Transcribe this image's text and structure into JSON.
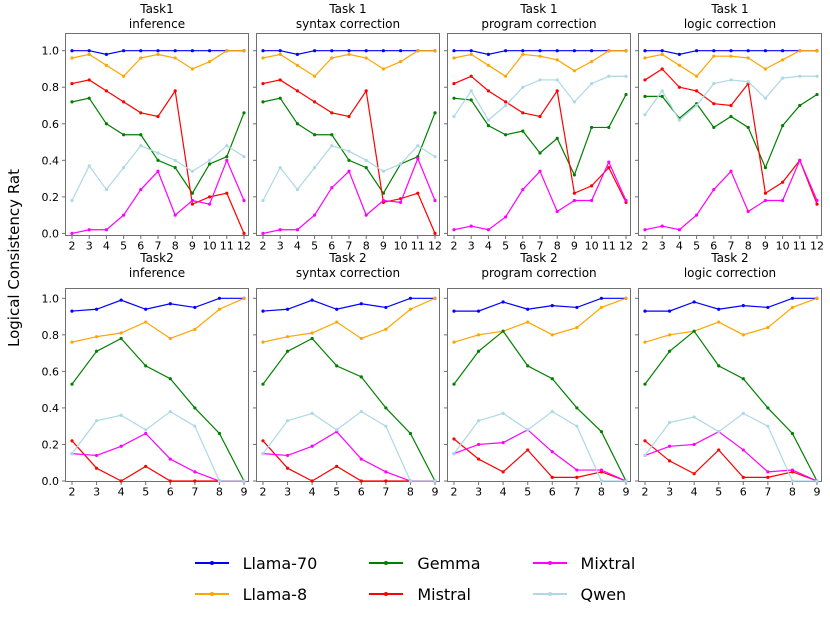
{
  "chart_data": {
    "type": "line",
    "ylabel": "Logical Consistency Rat",
    "grid": false,
    "ylim": [
      0.0,
      1.05
    ],
    "yticks": [
      0.0,
      0.2,
      0.4,
      0.6,
      0.8,
      1.0
    ],
    "legend_position": "bottom",
    "legend": [
      {
        "name": "Llama-70",
        "color": "#0000ff"
      },
      {
        "name": "Llama-8",
        "color": "#ffa500"
      },
      {
        "name": "Gemma",
        "color": "#008000"
      },
      {
        "name": "Mistral",
        "color": "#ff0000"
      },
      {
        "name": "Mixtral",
        "color": "#ff00ff"
      },
      {
        "name": "Qwen",
        "color": "#add8e6"
      }
    ],
    "subplots": [
      {
        "title1": "Task1",
        "title2": "inference",
        "x": [
          2,
          3,
          4,
          5,
          6,
          7,
          8,
          9,
          10,
          11,
          12
        ],
        "series": [
          {
            "name": "Llama-70",
            "values": [
              1.0,
              1.0,
              0.98,
              1.0,
              1.0,
              1.0,
              1.0,
              1.0,
              1.0,
              1.0,
              1.0
            ]
          },
          {
            "name": "Llama-8",
            "values": [
              0.96,
              0.98,
              0.92,
              0.86,
              0.96,
              0.98,
              0.96,
              0.9,
              0.94,
              1.0,
              1.0
            ]
          },
          {
            "name": "Gemma",
            "values": [
              0.72,
              0.74,
              0.6,
              0.54,
              0.54,
              0.4,
              0.36,
              0.22,
              0.38,
              0.42,
              0.66
            ]
          },
          {
            "name": "Mistral",
            "values": [
              0.82,
              0.84,
              0.78,
              0.72,
              0.66,
              0.64,
              0.78,
              0.16,
              0.2,
              0.22,
              0.0
            ]
          },
          {
            "name": "Mixtral",
            "values": [
              0.0,
              0.02,
              0.02,
              0.1,
              0.24,
              0.34,
              0.1,
              0.18,
              0.16,
              0.4,
              0.18
            ]
          },
          {
            "name": "Qwen",
            "values": [
              0.18,
              0.37,
              0.24,
              0.36,
              0.48,
              0.44,
              0.4,
              0.34,
              0.4,
              0.48,
              0.42
            ]
          }
        ]
      },
      {
        "title1": "Task 1",
        "title2": "syntax correction",
        "x": [
          2,
          3,
          4,
          5,
          6,
          7,
          8,
          9,
          10,
          11,
          12
        ],
        "series": [
          {
            "name": "Llama-70",
            "values": [
              1.0,
              1.0,
              0.98,
              1.0,
              1.0,
              1.0,
              1.0,
              1.0,
              1.0,
              1.0,
              1.0
            ]
          },
          {
            "name": "Llama-8",
            "values": [
              0.96,
              0.98,
              0.92,
              0.86,
              0.96,
              0.98,
              0.96,
              0.9,
              0.94,
              1.0,
              1.0
            ]
          },
          {
            "name": "Gemma",
            "values": [
              0.72,
              0.74,
              0.6,
              0.54,
              0.54,
              0.4,
              0.36,
              0.22,
              0.38,
              0.42,
              0.66
            ]
          },
          {
            "name": "Mistral",
            "values": [
              0.82,
              0.84,
              0.78,
              0.72,
              0.66,
              0.64,
              0.78,
              0.17,
              0.19,
              0.22,
              0.0
            ]
          },
          {
            "name": "Mixtral",
            "values": [
              0.0,
              0.02,
              0.02,
              0.1,
              0.25,
              0.34,
              0.1,
              0.18,
              0.17,
              0.41,
              0.18
            ]
          },
          {
            "name": "Qwen",
            "values": [
              0.18,
              0.36,
              0.24,
              0.36,
              0.48,
              0.45,
              0.4,
              0.34,
              0.38,
              0.48,
              0.42
            ]
          }
        ]
      },
      {
        "title1": "Task 1",
        "title2": "program correction",
        "x": [
          2,
          3,
          4,
          5,
          6,
          7,
          8,
          9,
          10,
          11,
          12
        ],
        "series": [
          {
            "name": "Llama-70",
            "values": [
              1.0,
              1.0,
              0.98,
              1.0,
              1.0,
              1.0,
              1.0,
              1.0,
              1.0,
              1.0,
              1.0
            ]
          },
          {
            "name": "Llama-8",
            "values": [
              0.96,
              0.98,
              0.92,
              0.86,
              0.98,
              0.97,
              0.95,
              0.89,
              0.94,
              1.0,
              1.0
            ]
          },
          {
            "name": "Gemma",
            "values": [
              0.74,
              0.73,
              0.59,
              0.54,
              0.56,
              0.44,
              0.52,
              0.32,
              0.58,
              0.58,
              0.76
            ]
          },
          {
            "name": "Mistral",
            "values": [
              0.82,
              0.86,
              0.78,
              0.72,
              0.66,
              0.64,
              0.78,
              0.22,
              0.26,
              0.36,
              0.17
            ]
          },
          {
            "name": "Mixtral",
            "values": [
              0.02,
              0.04,
              0.02,
              0.09,
              0.24,
              0.34,
              0.12,
              0.18,
              0.18,
              0.39,
              0.18
            ]
          },
          {
            "name": "Qwen",
            "values": [
              0.64,
              0.78,
              0.62,
              0.7,
              0.8,
              0.84,
              0.84,
              0.72,
              0.82,
              0.86,
              0.86
            ]
          }
        ]
      },
      {
        "title1": "Task 1",
        "title2": "logic correction",
        "x": [
          2,
          3,
          4,
          5,
          6,
          7,
          8,
          9,
          10,
          11,
          12
        ],
        "series": [
          {
            "name": "Llama-70",
            "values": [
              1.0,
              1.0,
              0.98,
              1.0,
              1.0,
              1.0,
              1.0,
              1.0,
              1.0,
              1.0,
              1.0
            ]
          },
          {
            "name": "Llama-8",
            "values": [
              0.96,
              0.98,
              0.92,
              0.86,
              0.97,
              0.97,
              0.96,
              0.9,
              0.95,
              1.0,
              1.0
            ]
          },
          {
            "name": "Gemma",
            "values": [
              0.75,
              0.75,
              0.63,
              0.71,
              0.58,
              0.64,
              0.58,
              0.36,
              0.59,
              0.7,
              0.76
            ]
          },
          {
            "name": "Mistral",
            "values": [
              0.84,
              0.9,
              0.8,
              0.78,
              0.71,
              0.7,
              0.82,
              0.22,
              0.28,
              0.4,
              0.16
            ]
          },
          {
            "name": "Mixtral",
            "values": [
              0.02,
              0.04,
              0.02,
              0.1,
              0.24,
              0.34,
              0.12,
              0.18,
              0.18,
              0.4,
              0.18
            ]
          },
          {
            "name": "Qwen",
            "values": [
              0.65,
              0.78,
              0.62,
              0.7,
              0.82,
              0.84,
              0.83,
              0.74,
              0.85,
              0.86,
              0.86
            ]
          }
        ]
      },
      {
        "title1": "Task2",
        "title2": "inference",
        "x": [
          2,
          3,
          4,
          5,
          6,
          7,
          8,
          9
        ],
        "series": [
          {
            "name": "Llama-70",
            "values": [
              0.93,
              0.94,
              0.99,
              0.94,
              0.97,
              0.95,
              1.0,
              1.0
            ]
          },
          {
            "name": "Llama-8",
            "values": [
              0.76,
              0.79,
              0.81,
              0.87,
              0.78,
              0.83,
              0.94,
              1.0
            ]
          },
          {
            "name": "Gemma",
            "values": [
              0.53,
              0.71,
              0.78,
              0.63,
              0.56,
              0.4,
              0.26,
              0.0
            ]
          },
          {
            "name": "Mistral",
            "values": [
              0.22,
              0.07,
              0.0,
              0.08,
              0.0,
              0.0,
              0.0,
              0.0
            ]
          },
          {
            "name": "Mixtral",
            "values": [
              0.15,
              0.14,
              0.19,
              0.26,
              0.12,
              0.05,
              0.0,
              0.0
            ]
          },
          {
            "name": "Qwen",
            "values": [
              0.15,
              0.33,
              0.36,
              0.28,
              0.38,
              0.3,
              0.0,
              0.0
            ]
          }
        ]
      },
      {
        "title1": "Task 2",
        "title2": "syntax correction",
        "x": [
          2,
          3,
          4,
          5,
          6,
          7,
          8,
          9
        ],
        "series": [
          {
            "name": "Llama-70",
            "values": [
              0.93,
              0.94,
              0.99,
              0.94,
              0.97,
              0.95,
              1.0,
              1.0
            ]
          },
          {
            "name": "Llama-8",
            "values": [
              0.76,
              0.79,
              0.81,
              0.87,
              0.78,
              0.83,
              0.94,
              1.0
            ]
          },
          {
            "name": "Gemma",
            "values": [
              0.53,
              0.71,
              0.78,
              0.63,
              0.57,
              0.4,
              0.26,
              0.0
            ]
          },
          {
            "name": "Mistral",
            "values": [
              0.22,
              0.07,
              0.0,
              0.08,
              0.0,
              0.0,
              0.0,
              0.0
            ]
          },
          {
            "name": "Mixtral",
            "values": [
              0.15,
              0.14,
              0.19,
              0.27,
              0.12,
              0.05,
              0.0,
              0.0
            ]
          },
          {
            "name": "Qwen",
            "values": [
              0.15,
              0.33,
              0.37,
              0.28,
              0.38,
              0.3,
              0.0,
              0.0
            ]
          }
        ]
      },
      {
        "title1": "Task 2",
        "title2": "program correction",
        "x": [
          2,
          3,
          4,
          5,
          6,
          7,
          8,
          9
        ],
        "series": [
          {
            "name": "Llama-70",
            "values": [
              0.93,
              0.93,
              0.98,
              0.94,
              0.96,
              0.95,
              1.0,
              1.0
            ]
          },
          {
            "name": "Llama-8",
            "values": [
              0.76,
              0.8,
              0.82,
              0.87,
              0.8,
              0.84,
              0.95,
              1.0
            ]
          },
          {
            "name": "Gemma",
            "values": [
              0.53,
              0.71,
              0.82,
              0.63,
              0.56,
              0.4,
              0.27,
              0.0
            ]
          },
          {
            "name": "Mistral",
            "values": [
              0.23,
              0.12,
              0.05,
              0.17,
              0.02,
              0.02,
              0.05,
              0.0
            ]
          },
          {
            "name": "Mixtral",
            "values": [
              0.15,
              0.2,
              0.21,
              0.28,
              0.16,
              0.06,
              0.06,
              0.0
            ]
          },
          {
            "name": "Qwen",
            "values": [
              0.15,
              0.33,
              0.37,
              0.28,
              0.38,
              0.3,
              0.0,
              0.0
            ]
          }
        ]
      },
      {
        "title1": "Task 2",
        "title2": "logic correction",
        "x": [
          2,
          3,
          4,
          5,
          6,
          7,
          8,
          9
        ],
        "series": [
          {
            "name": "Llama-70",
            "values": [
              0.93,
              0.93,
              0.98,
              0.94,
              0.96,
              0.95,
              1.0,
              1.0
            ]
          },
          {
            "name": "Llama-8",
            "values": [
              0.76,
              0.8,
              0.82,
              0.87,
              0.8,
              0.84,
              0.95,
              1.0
            ]
          },
          {
            "name": "Gemma",
            "values": [
              0.53,
              0.71,
              0.82,
              0.63,
              0.56,
              0.4,
              0.26,
              0.0
            ]
          },
          {
            "name": "Mistral",
            "values": [
              0.22,
              0.11,
              0.04,
              0.17,
              0.02,
              0.02,
              0.05,
              0.0
            ]
          },
          {
            "name": "Mixtral",
            "values": [
              0.14,
              0.19,
              0.2,
              0.27,
              0.17,
              0.05,
              0.06,
              0.0
            ]
          },
          {
            "name": "Qwen",
            "values": [
              0.14,
              0.32,
              0.35,
              0.27,
              0.37,
              0.3,
              0.0,
              0.0
            ]
          }
        ]
      }
    ]
  }
}
